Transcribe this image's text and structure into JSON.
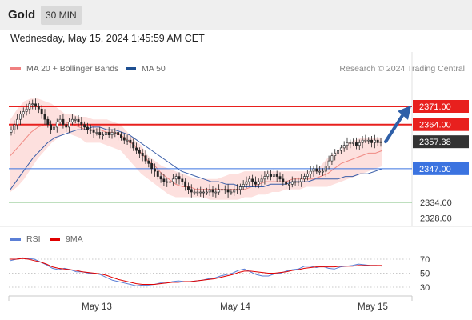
{
  "header": {
    "title": "Gold",
    "timeframe": "30 MIN"
  },
  "datetime": "Wednesday, May 15, 2024 1:45:59 AM CET",
  "legend": {
    "bollinger": {
      "label": "MA 20 + Bollinger Bands",
      "color": "#f08080"
    },
    "ma50": {
      "label": "MA 50",
      "color": "#1e4f91"
    }
  },
  "credit": "Research © 2024 Trading Central",
  "rsi_legend": {
    "rsi": {
      "label": "RSI",
      "color": "#5b7fd6"
    },
    "ma9": {
      "label": "9MA",
      "color": "#e00000"
    }
  },
  "chart_data": [
    {
      "type": "candlestick",
      "title": "Gold",
      "timeframe": "30 MIN",
      "x_ticks": [
        "May 13",
        "May 14",
        "May 15"
      ],
      "ylim": [
        2325,
        2375
      ],
      "levels": [
        {
          "name": "resistance_2",
          "value": 2371.0,
          "label": "2371.00",
          "style": "red-box"
        },
        {
          "name": "resistance_1",
          "value": 2364.0,
          "label": "2364.00",
          "style": "red-box"
        },
        {
          "name": "last_price",
          "value": 2357.38,
          "label": "2357.38",
          "style": "dark-box"
        },
        {
          "name": "pivot",
          "value": 2347.0,
          "label": "2347.00",
          "style": "blue-box"
        },
        {
          "name": "support_1",
          "value": 2334.0,
          "label": "2334.00",
          "style": "green-text"
        },
        {
          "name": "support_2",
          "value": 2328.0,
          "label": "2328.00",
          "style": "green-text"
        }
      ],
      "close": [
        2362,
        2364,
        2366,
        2368,
        2369,
        2370,
        2372,
        2372,
        2371,
        2370,
        2368,
        2366,
        2364,
        2362,
        2363,
        2365,
        2366,
        2364,
        2363,
        2365,
        2366,
        2366,
        2365,
        2364,
        2363,
        2362,
        2362,
        2361,
        2361,
        2360,
        2360,
        2361,
        2360,
        2361,
        2361,
        2360,
        2359,
        2358,
        2358,
        2357,
        2355,
        2354,
        2353,
        2352,
        2350,
        2349,
        2347,
        2346,
        2344,
        2343,
        2342,
        2342,
        2342,
        2343,
        2344,
        2343,
        2342,
        2340,
        2339,
        2338,
        2338,
        2338,
        2338,
        2338,
        2338,
        2339,
        2338,
        2338,
        2339,
        2339,
        2339,
        2338,
        2338,
        2339,
        2339,
        2340,
        2341,
        2342,
        2343,
        2342,
        2341,
        2342,
        2343,
        2344,
        2345,
        2344,
        2345,
        2344,
        2343,
        2342,
        2341,
        2341,
        2342,
        2342,
        2342,
        2343,
        2344,
        2345,
        2346,
        2347,
        2346,
        2346,
        2346,
        2348,
        2350,
        2352,
        2353,
        2354,
        2355,
        2356,
        2357,
        2357,
        2357,
        2356,
        2357,
        2358,
        2358,
        2358,
        2357,
        2358,
        2357,
        2357.38
      ],
      "bollinger_ma20": [
        2352,
        2355,
        2358,
        2361,
        2363,
        2364,
        2365,
        2365,
        2365,
        2364,
        2363,
        2362,
        2362,
        2362,
        2361,
        2361,
        2360,
        2358,
        2356,
        2353,
        2350,
        2348,
        2345,
        2343,
        2341,
        2340,
        2340,
        2339,
        2339,
        2339,
        2339,
        2339,
        2339,
        2339,
        2339,
        2340,
        2341,
        2342,
        2342,
        2342,
        2342,
        2343,
        2343,
        2343,
        2343,
        2344,
        2345,
        2347,
        2349,
        2350,
        2351,
        2352,
        2353,
        2353,
        2354
      ],
      "bollinger_upper": [
        2366,
        2370,
        2373,
        2374,
        2374,
        2373,
        2372,
        2370,
        2368,
        2368,
        2367,
        2367,
        2366,
        2366,
        2366,
        2365,
        2364,
        2361,
        2358,
        2356,
        2352,
        2350,
        2348,
        2347,
        2346,
        2345,
        2344,
        2343,
        2343,
        2343,
        2343,
        2344,
        2345,
        2345,
        2346,
        2346,
        2346,
        2346,
        2346,
        2346,
        2346,
        2346,
        2346,
        2346,
        2346,
        2348,
        2351,
        2353,
        2355,
        2357,
        2358,
        2359,
        2359,
        2359,
        2359
      ],
      "bollinger_lower": [
        2338,
        2340,
        2343,
        2347,
        2351,
        2354,
        2357,
        2359,
        2361,
        2360,
        2359,
        2357,
        2357,
        2357,
        2356,
        2355,
        2354,
        2351,
        2348,
        2345,
        2343,
        2341,
        2339,
        2337,
        2336,
        2336,
        2336,
        2336,
        2336,
        2335,
        2335,
        2335,
        2335,
        2335,
        2336,
        2336,
        2337,
        2337,
        2338,
        2338,
        2339,
        2339,
        2339,
        2340,
        2340,
        2340,
        2340,
        2341,
        2342,
        2343,
        2344,
        2345,
        2346,
        2347,
        2348
      ],
      "ma50": [
        2339,
        2343,
        2347,
        2351,
        2354,
        2357,
        2359,
        2360,
        2361,
        2362,
        2362,
        2363,
        2363,
        2362,
        2362,
        2361,
        2360,
        2358,
        2356,
        2354,
        2352,
        2350,
        2348,
        2346,
        2345,
        2344,
        2343,
        2342,
        2342,
        2341,
        2341,
        2340,
        2340,
        2340,
        2340,
        2341,
        2341,
        2341,
        2342,
        2342,
        2342,
        2343,
        2343,
        2343,
        2343,
        2344,
        2344,
        2345,
        2345,
        2346,
        2347
      ]
    },
    {
      "type": "line",
      "title": "RSI",
      "ylim": [
        20,
        80
      ],
      "y_ticks": [
        70,
        50,
        30
      ],
      "series": [
        {
          "name": "RSI",
          "values": [
            68,
            70,
            72,
            71,
            70,
            66,
            62,
            57,
            55,
            57,
            55,
            52,
            52,
            50,
            50,
            48,
            44,
            40,
            38,
            36,
            34,
            32,
            33,
            33,
            34,
            36,
            36,
            38,
            39,
            38,
            38,
            39,
            40,
            42,
            43,
            46,
            48,
            50,
            54,
            56,
            52,
            48,
            46,
            46,
            49,
            50,
            53,
            55,
            56,
            60,
            60,
            58,
            60,
            57,
            56,
            59,
            60,
            61,
            63,
            62,
            61,
            61,
            60
          ]
        },
        {
          "name": "9MA",
          "values": [
            70,
            70,
            71,
            70,
            68,
            66,
            63,
            59,
            57,
            56,
            55,
            54,
            52,
            51,
            50,
            49,
            47,
            44,
            41,
            39,
            37,
            35,
            34,
            34,
            34,
            35,
            36,
            37,
            37,
            38,
            38,
            39,
            40,
            41,
            42,
            44,
            46,
            48,
            51,
            53,
            53,
            52,
            51,
            50,
            50,
            51,
            52,
            54,
            55,
            57,
            58,
            59,
            59,
            59,
            59,
            60,
            60,
            60,
            61,
            61,
            61,
            61,
            61
          ]
        }
      ]
    }
  ]
}
